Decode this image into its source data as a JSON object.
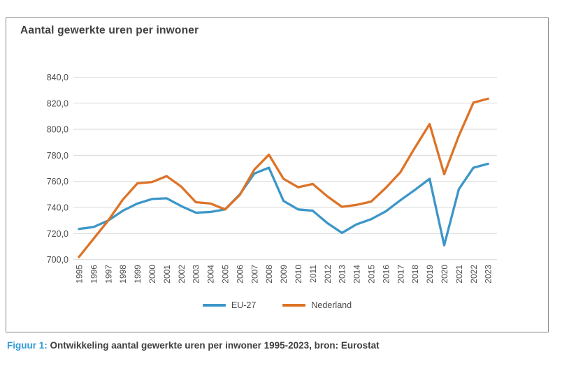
{
  "chart": {
    "title": "Aantal gewerkte uren per inwoner"
  },
  "chart_data": {
    "type": "line",
    "title": "Aantal gewerkte uren per inwoner",
    "categories": [
      "1995",
      "1996",
      "1997",
      "1998",
      "1999",
      "2000",
      "2001",
      "2002",
      "2003",
      "2004",
      "2005",
      "2006",
      "2007",
      "2008",
      "2009",
      "2010",
      "2011",
      "2012",
      "2013",
      "2014",
      "2015",
      "2016",
      "2017",
      "2018",
      "2019",
      "2020",
      "2021",
      "2022",
      "2023"
    ],
    "series": [
      {
        "name": "EU-27",
        "color": "#3c96c8",
        "values": [
          723.5,
          725,
          730,
          737.5,
          743,
          746.5,
          747,
          741,
          736,
          736.5,
          738.5,
          750,
          766,
          770.5,
          745,
          738.5,
          737.5,
          728,
          720.5,
          727,
          731,
          737,
          745.5,
          753.5,
          762,
          711,
          754,
          770.5,
          773.5
        ]
      },
      {
        "name": "Nederland",
        "color": "#dd7327",
        "values": [
          702,
          716,
          730,
          746,
          758.5,
          759.5,
          764,
          756,
          744,
          743,
          738.5,
          749.5,
          769,
          780.5,
          762,
          755.5,
          758,
          748.5,
          740.5,
          742,
          744.5,
          755,
          767,
          786,
          804,
          765.5,
          795,
          820.5,
          823.5
        ]
      }
    ],
    "ylim": [
      700,
      840
    ],
    "ytick_step": 20,
    "ytick_labels": [
      "840,0",
      "820,0",
      "800,0",
      "780,0",
      "760,0",
      "740,0",
      "720,0",
      "700,0"
    ],
    "xlabel": "",
    "ylabel": "",
    "grid": "horizontal",
    "gridline_color": "#d9d9d9",
    "legend_position": "bottom"
  },
  "caption": {
    "prefix": "Figuur 1:",
    "text": " Ontwikkeling aantal gewerkte uren per inwoner 1995-2023, bron: Eurostat"
  }
}
